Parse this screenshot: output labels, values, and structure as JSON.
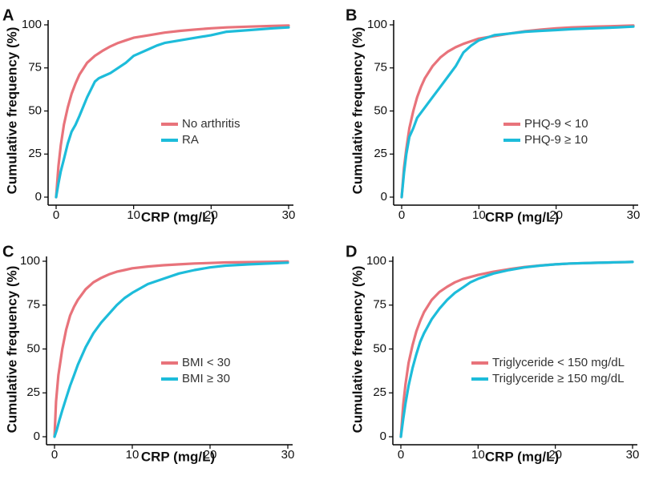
{
  "colors": {
    "series1": "#E8737B",
    "series2": "#1DBCDA",
    "axis": "#000000"
  },
  "chart_data": [
    {
      "type": "line",
      "panel_label": "A",
      "xlabel": "CRP (mg/L)",
      "ylabel": "Cumulative frequency (%)",
      "xlim": [
        0,
        30
      ],
      "ylim": [
        0,
        100
      ],
      "xticks": [
        "0",
        "10",
        "20",
        "30"
      ],
      "yticks": [
        "0",
        "25",
        "50",
        "75",
        "100"
      ],
      "legend_position": "center-right",
      "series": [
        {
          "name": "No arthritis",
          "color": "#E8737B",
          "x": [
            0,
            0.3,
            0.6,
            1,
            1.5,
            2,
            2.5,
            3,
            4,
            5,
            6,
            7,
            8,
            9,
            10,
            12,
            14,
            16,
            18,
            20,
            22,
            25,
            28,
            30
          ],
          "y": [
            0,
            18,
            30,
            42,
            52,
            60,
            66,
            71,
            78,
            82,
            85,
            87.5,
            89.5,
            91,
            92.5,
            94,
            95.5,
            96.5,
            97.3,
            98,
            98.5,
            99,
            99.4,
            99.6
          ]
        },
        {
          "name": "RA",
          "color": "#1DBCDA",
          "x": [
            0,
            0.3,
            0.6,
            1,
            1.5,
            2,
            2.5,
            3,
            4,
            5,
            5.5,
            6,
            7,
            8,
            9,
            10,
            11,
            12,
            13,
            14,
            16,
            18,
            20,
            22,
            25,
            28,
            30
          ],
          "y": [
            0,
            8,
            15,
            22,
            31,
            38,
            42,
            47,
            58,
            67,
            69,
            70,
            72,
            75,
            78,
            82,
            84,
            86,
            88,
            89.5,
            91,
            92.5,
            94,
            96,
            97,
            98,
            98.5
          ]
        }
      ]
    },
    {
      "type": "line",
      "panel_label": "B",
      "xlabel": "CRP (mg/L)",
      "ylabel": "Cumulative frequency (%)",
      "xlim": [
        0,
        30
      ],
      "ylim": [
        0,
        100
      ],
      "xticks": [
        "0",
        "10",
        "20",
        "30"
      ],
      "yticks": [
        "0",
        "25",
        "50",
        "75",
        "100"
      ],
      "legend_position": "center-right",
      "series": [
        {
          "name": "PHQ-9 < 10",
          "color": "#E8737B",
          "x": [
            0,
            0.3,
            0.6,
            1,
            1.5,
            2,
            2.5,
            3,
            4,
            5,
            6,
            7,
            8,
            9,
            10,
            12,
            14,
            16,
            18,
            20,
            22,
            25,
            28,
            30
          ],
          "y": [
            0,
            17,
            28,
            40,
            50,
            58,
            64,
            69,
            76,
            81,
            84.5,
            87,
            89,
            90.5,
            92,
            93.5,
            95,
            96.3,
            97.2,
            98,
            98.5,
            99,
            99.3,
            99.6
          ]
        },
        {
          "name": "PHQ-9 ≥ 10",
          "color": "#1DBCDA",
          "x": [
            0,
            0.3,
            0.6,
            1,
            1.5,
            2,
            3,
            4,
            5,
            6,
            7,
            8,
            9,
            10,
            11,
            12,
            14,
            16,
            18,
            20,
            22,
            25,
            28,
            30
          ],
          "y": [
            0,
            14,
            25,
            35,
            40,
            46,
            52,
            58,
            64,
            70,
            76,
            84,
            88,
            91,
            92.5,
            94,
            95,
            96,
            96.5,
            97,
            97.5,
            98,
            98.5,
            99
          ]
        }
      ]
    },
    {
      "type": "line",
      "panel_label": "C",
      "xlabel": "CRP (mg/L)",
      "ylabel": "Cumulative frequency (%)",
      "xlim": [
        0,
        30
      ],
      "ylim": [
        0,
        100
      ],
      "xticks": [
        "0",
        "10",
        "20",
        "30"
      ],
      "yticks": [
        "0",
        "25",
        "50",
        "75",
        "100"
      ],
      "legend_position": "center-right",
      "series": [
        {
          "name": "BMI < 30",
          "color": "#E8737B",
          "x": [
            0,
            0.2,
            0.5,
            1,
            1.5,
            2,
            2.5,
            3,
            4,
            5,
            6,
            7,
            8,
            9,
            10,
            12,
            14,
            16,
            18,
            20,
            22,
            25,
            28,
            30
          ],
          "y": [
            0,
            20,
            35,
            50,
            61,
            69,
            74,
            78,
            84,
            88,
            90.5,
            92.5,
            94,
            95,
            96,
            97,
            97.7,
            98.2,
            98.7,
            99,
            99.3,
            99.5,
            99.7,
            99.8
          ]
        },
        {
          "name": "BMI ≥ 30",
          "color": "#1DBCDA",
          "x": [
            0,
            0.3,
            0.6,
            1,
            1.5,
            2,
            2.5,
            3,
            4,
            5,
            6,
            7,
            8,
            9,
            10,
            12,
            14,
            16,
            18,
            20,
            22,
            25,
            28,
            30
          ],
          "y": [
            0,
            4,
            9,
            15,
            22,
            29,
            35,
            41,
            51,
            59,
            65,
            70,
            75,
            79,
            82,
            87,
            90,
            93,
            95,
            96.5,
            97.5,
            98.2,
            98.8,
            99.2
          ]
        }
      ]
    },
    {
      "type": "line",
      "panel_label": "D",
      "xlabel": "CRP (mg/L)",
      "ylabel": "Cumulative frequency (%)",
      "xlim": [
        0,
        30
      ],
      "ylim": [
        0,
        100
      ],
      "xticks": [
        "0",
        "10",
        "20",
        "30"
      ],
      "yticks": [
        "0",
        "25",
        "50",
        "75",
        "100"
      ],
      "legend_position": "center-right",
      "series": [
        {
          "name": "Triglyceride < 150 mg/dL",
          "color": "#E8737B",
          "x": [
            0,
            0.3,
            0.6,
            1,
            1.5,
            2,
            2.5,
            3,
            4,
            5,
            6,
            7,
            8,
            9,
            10,
            12,
            14,
            16,
            18,
            20,
            22,
            25,
            28,
            30
          ],
          "y": [
            0,
            18,
            30,
            42,
            52,
            60,
            66,
            71,
            78,
            82.5,
            85.5,
            88,
            89.8,
            91,
            92.2,
            94,
            95.5,
            96.7,
            97.6,
            98.2,
            98.7,
            99.1,
            99.4,
            99.6
          ]
        },
        {
          "name": "Triglyceride ≥ 150 mg/dL",
          "color": "#1DBCDA",
          "x": [
            0,
            0.3,
            0.6,
            1,
            1.5,
            2,
            2.5,
            3,
            4,
            5,
            6,
            7,
            8,
            9,
            10,
            12,
            14,
            16,
            18,
            20,
            22,
            25,
            28,
            30
          ],
          "y": [
            0,
            10,
            19,
            29,
            39,
            47,
            54,
            59,
            67,
            73,
            78,
            82,
            85,
            88,
            90,
            93,
            95,
            96.5,
            97.5,
            98.2,
            98.7,
            99.1,
            99.4,
            99.6
          ]
        }
      ]
    }
  ]
}
